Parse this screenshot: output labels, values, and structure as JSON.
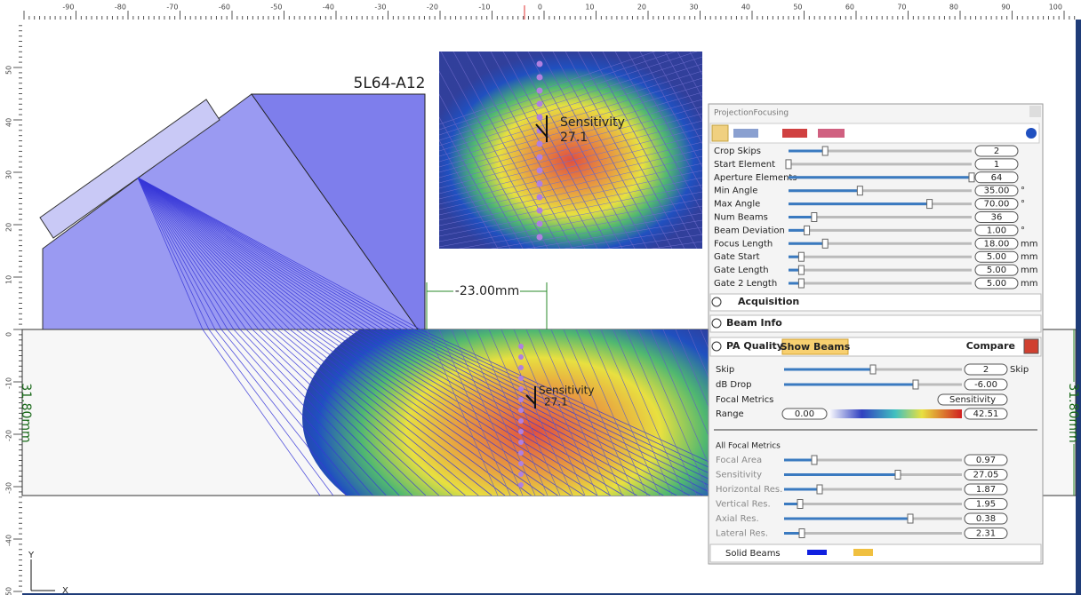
{
  "rulers": {
    "top": [
      -90,
      -80,
      -70,
      -60,
      -50,
      -40,
      -30,
      -20,
      -10,
      0,
      10,
      20,
      30,
      40,
      50,
      60,
      70,
      80,
      90,
      100
    ],
    "left": [
      50,
      40,
      30,
      20,
      10,
      0,
      -10,
      -20,
      -30,
      -40,
      -50
    ]
  },
  "canvas": {
    "probe_label": "5L64-A12",
    "offset_dimension": "-23.00mm",
    "thickness_dimension": "31.80mm",
    "sensitivity_label": "Sensitivity",
    "sensitivity_value": "27.1",
    "axis_y": "Y",
    "axis_x": "X"
  },
  "panel": {
    "title": "ProjectionFocusing",
    "parameters": [
      {
        "label": "Crop Skips",
        "value": "2"
      },
      {
        "label": "Start Element",
        "value": "1"
      },
      {
        "label": "Aperture Elements",
        "value": "64"
      },
      {
        "label": "Min Angle",
        "value": "35.00",
        "unit": "°"
      },
      {
        "label": "Max Angle",
        "value": "70.00",
        "unit": "°"
      },
      {
        "label": "Num Beams",
        "value": "36"
      },
      {
        "label": "Beam Deviation",
        "value": "1.00",
        "unit": "°"
      },
      {
        "label": "Focus Length",
        "value": "18.00",
        "unit": "mm"
      },
      {
        "label": "Gate Start",
        "value": "5.00",
        "unit": "mm"
      },
      {
        "label": "Gate Length",
        "value": "5.00",
        "unit": "mm"
      },
      {
        "label": "Gate 2 Length",
        "value": "5.00",
        "unit": "mm"
      }
    ],
    "sections": {
      "acquisition": "Acquisition",
      "beam_info": "Beam Info",
      "pa_quality": "PA Quality",
      "show_beams": "Show Beams",
      "compare": "Compare"
    },
    "quality": {
      "skip_label": "Skip",
      "skip_value": "2",
      "skip_unit": "Skip",
      "db_drop_label": "dB Drop",
      "db_drop_value": "-6.00",
      "focal_metrics_label": "Focal Metrics",
      "focal_metrics_value": "Sensitivity",
      "range_label": "Range",
      "range_min": "0.00",
      "range_max": "42.51"
    },
    "metrics_title": "All Focal Metrics",
    "metrics": [
      {
        "label": "Focal Area",
        "value": "0.97"
      },
      {
        "label": "Sensitivity",
        "value": "27.05"
      },
      {
        "label": "Horizontal Res.",
        "value": "1.87"
      },
      {
        "label": "Vertical Res.",
        "value": "1.95"
      },
      {
        "label": "Axial Res.",
        "value": "0.38"
      },
      {
        "label": "Lateral Res.",
        "value": "2.31"
      }
    ],
    "footer": "Solid Beams"
  }
}
